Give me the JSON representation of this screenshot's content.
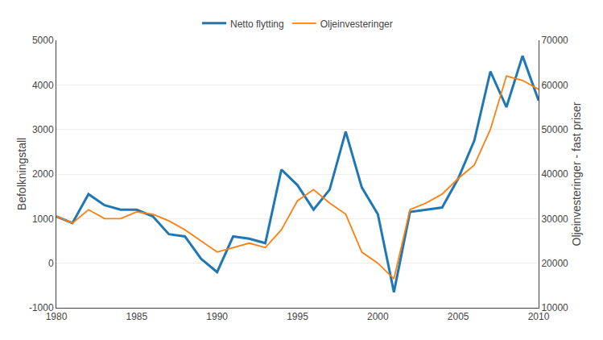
{
  "chart_data": {
    "type": "line",
    "x": [
      1980,
      1981,
      1982,
      1983,
      1984,
      1985,
      1986,
      1987,
      1988,
      1989,
      1990,
      1991,
      1992,
      1993,
      1994,
      1995,
      1996,
      1997,
      1998,
      1999,
      2000,
      2001,
      2002,
      2003,
      2004,
      2005,
      2006,
      2007,
      2008,
      2009,
      2010
    ],
    "series": [
      {
        "name": "Netto flytting",
        "values": [
          1050,
          900,
          1550,
          1300,
          1200,
          1200,
          1050,
          650,
          600,
          100,
          -200,
          600,
          550,
          450,
          2100,
          1750,
          1200,
          1650,
          2950,
          1700,
          1100,
          -650,
          1150,
          1200,
          1250,
          1900,
          2750,
          4300,
          3500,
          4650,
          3650
        ]
      },
      {
        "name": "Oljeinvesteringer",
        "axis": "y2",
        "values": [
          30500,
          29000,
          32000,
          30000,
          30000,
          31500,
          31000,
          29500,
          27500,
          25000,
          22500,
          23500,
          24500,
          23500,
          27500,
          34000,
          36500,
          33500,
          31000,
          22500,
          20000,
          16500,
          32000,
          33500,
          35500,
          39000,
          42000,
          50000,
          62000,
          61000,
          59000
        ]
      }
    ],
    "ylabel": "Befolkningstall",
    "y2label": "Oljeinvesteringer - fast priser",
    "xlim": [
      1980,
      2010
    ],
    "xticks": [
      1980,
      1985,
      1990,
      1995,
      2000,
      2005,
      2010
    ],
    "ylim": [
      -1000,
      5000
    ],
    "yticks": [
      -1000,
      0,
      1000,
      2000,
      3000,
      4000,
      5000
    ],
    "y2lim": [
      10000,
      70000
    ],
    "y2ticks": [
      10000,
      20000,
      30000,
      40000,
      50000,
      60000,
      70000
    ],
    "grid": true,
    "legend": "top"
  }
}
